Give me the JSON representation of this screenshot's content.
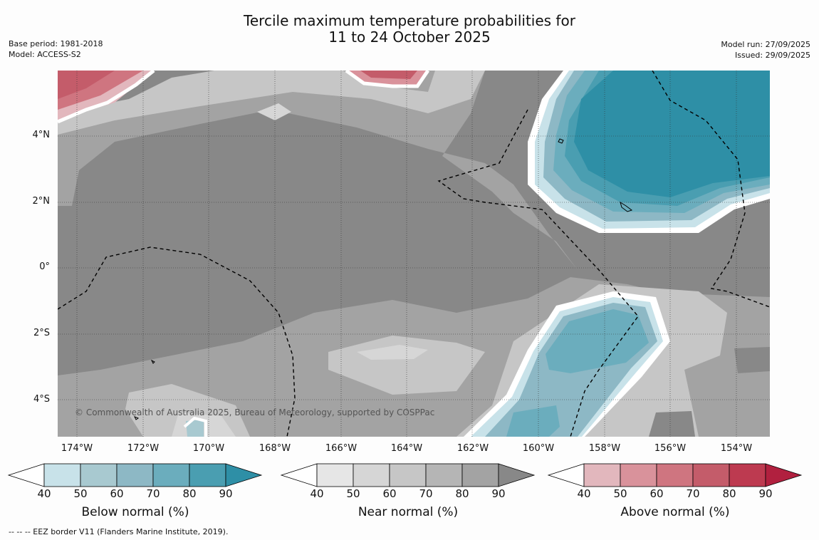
{
  "title": {
    "line1": "Tercile maximum temperature probabilities for",
    "line2": "11 to 24 October 2025"
  },
  "meta_left": {
    "base_period": "Base period: 1981-2018",
    "model": "Model: ACCESS-S2"
  },
  "meta_right": {
    "model_run": "Model run: 27/09/2025",
    "issued": "Issued: 29/09/2025"
  },
  "map": {
    "lat_labels": [
      "4°N",
      "2°N",
      "0°",
      "2°S",
      "4°S"
    ],
    "lon_labels": [
      "174°W",
      "172°W",
      "170°W",
      "168°W",
      "166°W",
      "164°W",
      "162°W",
      "160°W",
      "158°W",
      "156°W",
      "154°W"
    ],
    "copyright": "© Commonwealth of Australia 2025, Bureau of Meteorology, supported by COSPPac"
  },
  "legends": [
    {
      "title": "Below normal (%)",
      "ticks": [
        "40",
        "50",
        "60",
        "70",
        "80",
        "90"
      ],
      "colors": [
        "#ffffff",
        "#c8e2e9",
        "#a8c9d0",
        "#8db8c5",
        "#6badbd",
        "#4a9eb1",
        "#2e8fa6"
      ]
    },
    {
      "title": "Near normal (%)",
      "ticks": [
        "40",
        "50",
        "60",
        "70",
        "80",
        "90"
      ],
      "colors": [
        "#ffffff",
        "#e6e6e6",
        "#d6d6d6",
        "#c6c6c6",
        "#b5b5b5",
        "#a3a3a3",
        "#888888"
      ]
    },
    {
      "title": "Above normal (%)",
      "ticks": [
        "40",
        "50",
        "60",
        "70",
        "80",
        "90"
      ],
      "colors": [
        "#ffffff",
        "#e2b7bd",
        "#d9929b",
        "#cf7580",
        "#c45c6a",
        "#bd3a50",
        "#b1203f"
      ]
    }
  ],
  "footnote": "--  --  -- EEZ border V11 (Flanders Marine Institute, 2019)."
}
